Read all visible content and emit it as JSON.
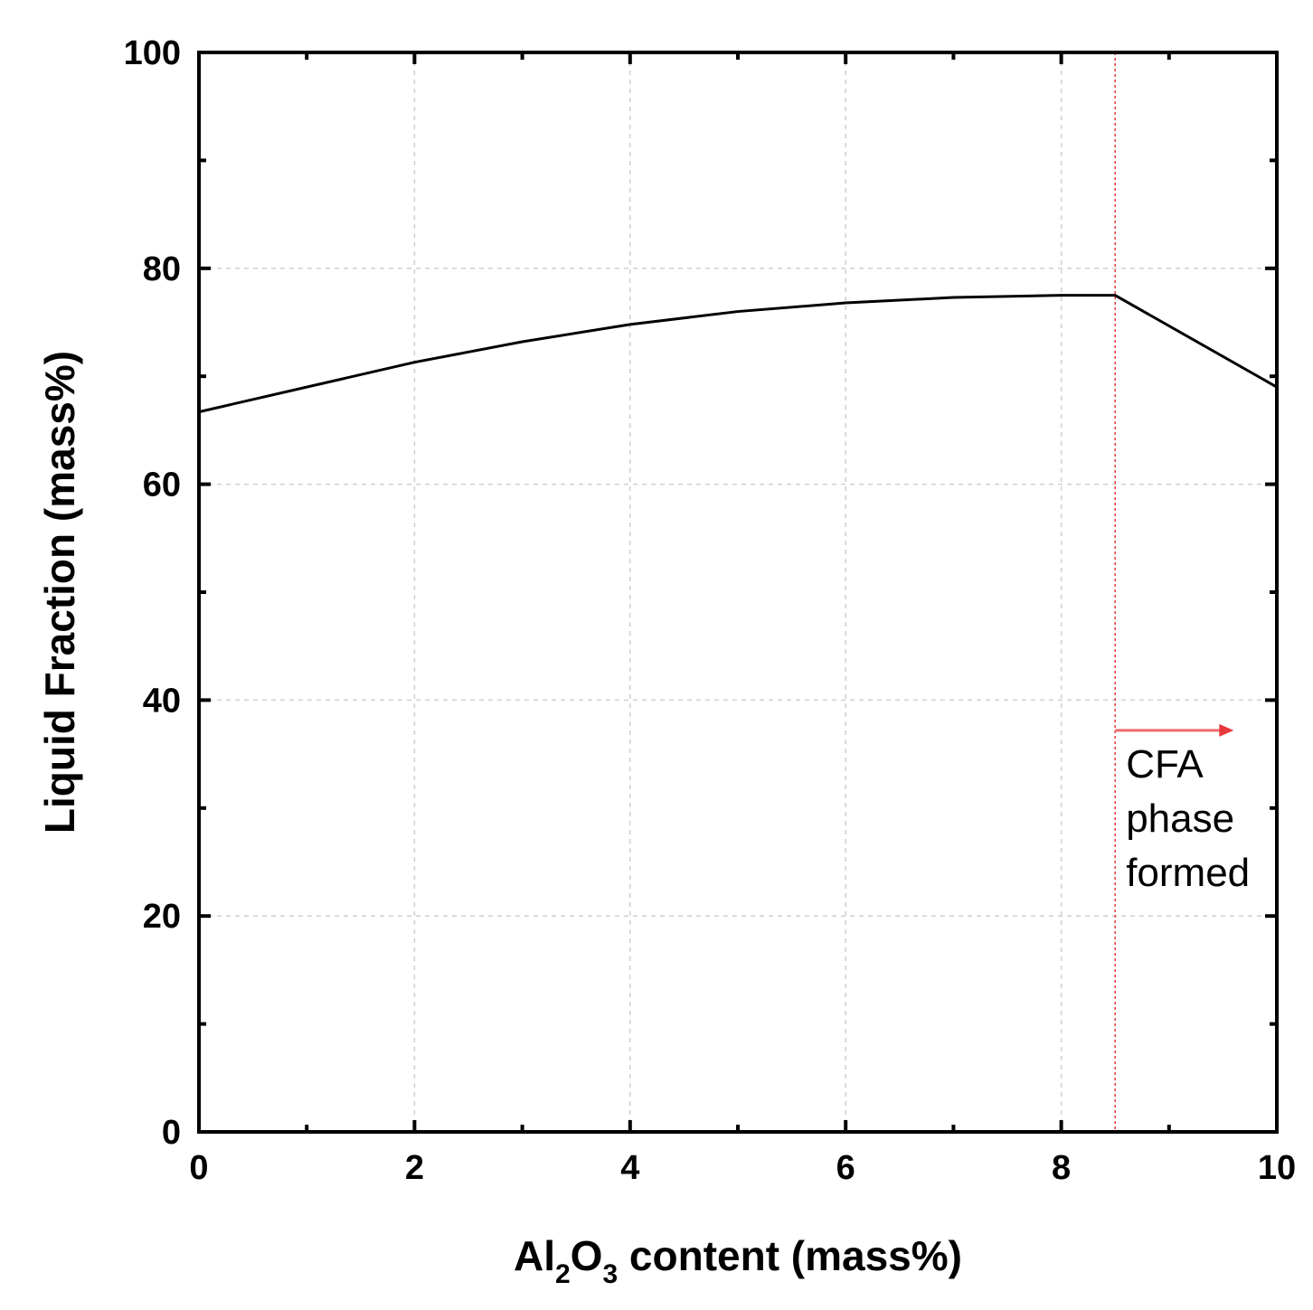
{
  "chart_data": {
    "type": "line",
    "title": "",
    "xlabel": {
      "parts": [
        "Al",
        "2",
        "O",
        "3",
        " content (mass%)"
      ]
    },
    "ylabel": "Liquid Fraction (mass%)",
    "xlim": [
      0,
      10
    ],
    "ylim": [
      0,
      100
    ],
    "x_ticks": [
      "0",
      "2",
      "4",
      "6",
      "8",
      "10"
    ],
    "y_ticks": [
      "0",
      "20",
      "40",
      "60",
      "80",
      "100"
    ],
    "grid": true,
    "series": [
      {
        "x": [
          0,
          1,
          2,
          3,
          4,
          5,
          6,
          7,
          8,
          8.5,
          10
        ],
        "y": [
          66.7,
          69.0,
          71.3,
          73.2,
          74.8,
          76.0,
          76.8,
          77.3,
          77.5,
          77.5,
          69.0
        ],
        "color": "#000000"
      }
    ],
    "annotations": {
      "boundary_x": 8.5,
      "boundary_color": "#e8383d",
      "arrow_y": 37.2,
      "arrow_x_end": 9.6,
      "label_lines": [
        "CFA",
        "phase",
        "formed"
      ]
    }
  }
}
